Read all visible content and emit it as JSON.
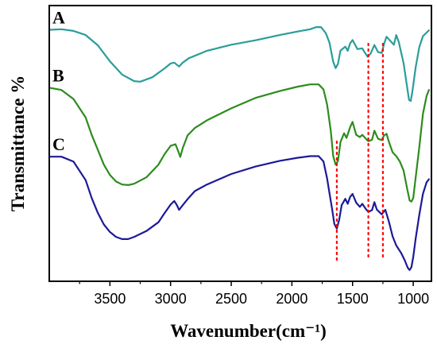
{
  "chart_data": {
    "type": "line",
    "title": "",
    "xlabel": "Wavenumber(cm⁻¹)",
    "ylabel": "Transmittance %",
    "xlim": [
      4000,
      850
    ],
    "x_reversed": true,
    "ylim": [
      0,
      100
    ],
    "grid": false,
    "legend": "inline-labels",
    "xticks": [
      3500,
      3000,
      2500,
      2000,
      1500,
      1000
    ],
    "reference_lines": [
      {
        "x": 1630,
        "color": "#ff0000",
        "style": "dotted"
      },
      {
        "x": 1370,
        "color": "#ff0000",
        "style": "dotted"
      },
      {
        "x": 1250,
        "color": "#ff0000",
        "style": "dotted"
      }
    ],
    "series": [
      {
        "name": "A",
        "color": "#2a9d9a",
        "points": [
          [
            4000,
            91.2
          ],
          [
            3900,
            91.4
          ],
          [
            3800,
            90.8
          ],
          [
            3700,
            89.3
          ],
          [
            3600,
            85.6
          ],
          [
            3500,
            79.8
          ],
          [
            3400,
            75.0
          ],
          [
            3300,
            72.6
          ],
          [
            3250,
            72.4
          ],
          [
            3150,
            74.0
          ],
          [
            3050,
            77.2
          ],
          [
            3000,
            79.0
          ],
          [
            2970,
            79.3
          ],
          [
            2930,
            77.9
          ],
          [
            2900,
            79.3
          ],
          [
            2850,
            80.9
          ],
          [
            2700,
            83.6
          ],
          [
            2500,
            85.8
          ],
          [
            2300,
            87.4
          ],
          [
            2100,
            89.3
          ],
          [
            1950,
            90.6
          ],
          [
            1850,
            91.4
          ],
          [
            1800,
            92.2
          ],
          [
            1760,
            92.2
          ],
          [
            1720,
            89.9
          ],
          [
            1690,
            86.5
          ],
          [
            1660,
            79.7
          ],
          [
            1640,
            77.3
          ],
          [
            1620,
            78.9
          ],
          [
            1600,
            83.7
          ],
          [
            1560,
            85.1
          ],
          [
            1540,
            83.6
          ],
          [
            1520,
            86.3
          ],
          [
            1500,
            87.5
          ],
          [
            1460,
            84.2
          ],
          [
            1420,
            84.5
          ],
          [
            1400,
            83.0
          ],
          [
            1375,
            81.4
          ],
          [
            1350,
            82.7
          ],
          [
            1320,
            85.7
          ],
          [
            1290,
            83.1
          ],
          [
            1260,
            82.8
          ],
          [
            1240,
            86.1
          ],
          [
            1220,
            88.7
          ],
          [
            1200,
            87.7
          ],
          [
            1160,
            85.8
          ],
          [
            1140,
            89.3
          ],
          [
            1120,
            86.9
          ],
          [
            1080,
            79.2
          ],
          [
            1050,
            70.2
          ],
          [
            1035,
            65.8
          ],
          [
            1020,
            65.4
          ],
          [
            1005,
            69.4
          ],
          [
            980,
            77.5
          ],
          [
            950,
            84.9
          ],
          [
            920,
            88.9
          ],
          [
            890,
            90.2
          ],
          [
            870,
            91.0
          ]
        ]
      },
      {
        "name": "B",
        "color": "#2c8c1c",
        "points": [
          [
            4000,
            70.2
          ],
          [
            3900,
            69.4
          ],
          [
            3800,
            66.1
          ],
          [
            3700,
            59.4
          ],
          [
            3650,
            53.1
          ],
          [
            3600,
            47.7
          ],
          [
            3550,
            42.3
          ],
          [
            3500,
            38.6
          ],
          [
            3450,
            36.2
          ],
          [
            3400,
            35.1
          ],
          [
            3350,
            34.9
          ],
          [
            3300,
            35.4
          ],
          [
            3200,
            37.7
          ],
          [
            3100,
            42.3
          ],
          [
            3050,
            46.1
          ],
          [
            3000,
            49.1
          ],
          [
            2960,
            49.7
          ],
          [
            2940,
            47.5
          ],
          [
            2920,
            45.1
          ],
          [
            2900,
            48.3
          ],
          [
            2860,
            52.9
          ],
          [
            2800,
            55.6
          ],
          [
            2700,
            58.4
          ],
          [
            2500,
            62.7
          ],
          [
            2300,
            66.5
          ],
          [
            2100,
            69.0
          ],
          [
            1950,
            70.6
          ],
          [
            1850,
            71.4
          ],
          [
            1780,
            71.4
          ],
          [
            1740,
            69.6
          ],
          [
            1710,
            64.1
          ],
          [
            1680,
            54.6
          ],
          [
            1660,
            45.5
          ],
          [
            1640,
            42.3
          ],
          [
            1620,
            43.7
          ],
          [
            1600,
            50.5
          ],
          [
            1570,
            53.7
          ],
          [
            1550,
            52.0
          ],
          [
            1520,
            55.9
          ],
          [
            1500,
            57.8
          ],
          [
            1470,
            53.1
          ],
          [
            1440,
            52.3
          ],
          [
            1420,
            53.1
          ],
          [
            1390,
            51.7
          ],
          [
            1370,
            50.8
          ],
          [
            1340,
            51.3
          ],
          [
            1320,
            54.6
          ],
          [
            1290,
            51.7
          ],
          [
            1260,
            51.2
          ],
          [
            1240,
            52.9
          ],
          [
            1220,
            53.5
          ],
          [
            1200,
            50.5
          ],
          [
            1170,
            46.8
          ],
          [
            1140,
            45.4
          ],
          [
            1110,
            43.4
          ],
          [
            1080,
            40.2
          ],
          [
            1050,
            33.5
          ],
          [
            1030,
            29.3
          ],
          [
            1015,
            28.9
          ],
          [
            1000,
            30.2
          ],
          [
            980,
            37.5
          ],
          [
            950,
            48.6
          ],
          [
            920,
            60.7
          ],
          [
            890,
            67.2
          ],
          [
            870,
            69.4
          ]
        ]
      },
      {
        "name": "C",
        "color": "#1c1a98",
        "points": [
          [
            4000,
            45.2
          ],
          [
            3900,
            45.2
          ],
          [
            3800,
            43.4
          ],
          [
            3700,
            36.7
          ],
          [
            3650,
            30.2
          ],
          [
            3600,
            24.8
          ],
          [
            3550,
            20.6
          ],
          [
            3500,
            17.9
          ],
          [
            3450,
            16.1
          ],
          [
            3400,
            15.3
          ],
          [
            3350,
            15.3
          ],
          [
            3300,
            16.1
          ],
          [
            3200,
            18.2
          ],
          [
            3100,
            21.4
          ],
          [
            3050,
            24.7
          ],
          [
            3000,
            27.8
          ],
          [
            2970,
            29.1
          ],
          [
            2950,
            27.8
          ],
          [
            2930,
            25.9
          ],
          [
            2900,
            27.6
          ],
          [
            2860,
            29.8
          ],
          [
            2800,
            32.7
          ],
          [
            2700,
            35.1
          ],
          [
            2500,
            38.9
          ],
          [
            2300,
            41.6
          ],
          [
            2100,
            43.7
          ],
          [
            1950,
            44.8
          ],
          [
            1850,
            45.4
          ],
          [
            1780,
            45.4
          ],
          [
            1740,
            43.5
          ],
          [
            1710,
            37.3
          ],
          [
            1690,
            31.9
          ],
          [
            1670,
            26.5
          ],
          [
            1650,
            20.8
          ],
          [
            1630,
            19.1
          ],
          [
            1610,
            22.3
          ],
          [
            1590,
            27.6
          ],
          [
            1560,
            29.9
          ],
          [
            1540,
            28.1
          ],
          [
            1520,
            30.6
          ],
          [
            1500,
            31.7
          ],
          [
            1470,
            28.5
          ],
          [
            1440,
            27.0
          ],
          [
            1420,
            28.1
          ],
          [
            1390,
            26.2
          ],
          [
            1370,
            25.2
          ],
          [
            1340,
            25.8
          ],
          [
            1320,
            28.7
          ],
          [
            1300,
            26.0
          ],
          [
            1260,
            24.3
          ],
          [
            1230,
            25.9
          ],
          [
            1200,
            21.5
          ],
          [
            1170,
            16.3
          ],
          [
            1140,
            13.0
          ],
          [
            1100,
            10.3
          ],
          [
            1070,
            7.6
          ],
          [
            1045,
            4.9
          ],
          [
            1030,
            4.1
          ],
          [
            1015,
            5.1
          ],
          [
            1000,
            8.8
          ],
          [
            980,
            15.4
          ],
          [
            950,
            24.1
          ],
          [
            920,
            31.7
          ],
          [
            890,
            35.9
          ],
          [
            870,
            37.0
          ]
        ]
      }
    ]
  }
}
